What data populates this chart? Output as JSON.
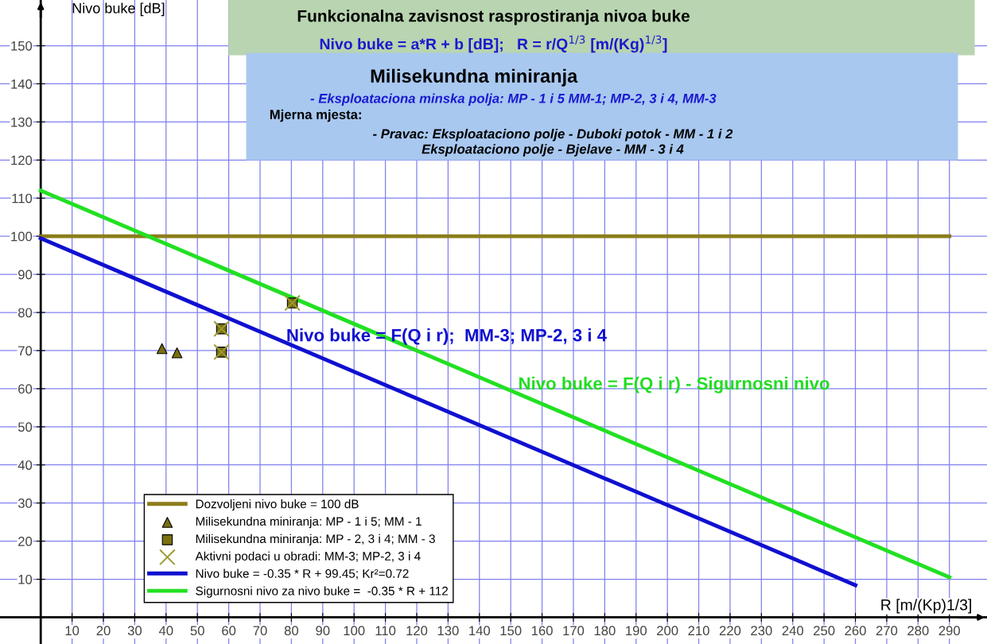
{
  "chart_data": {
    "type": "line",
    "xlabel": "R [m/(Kp)1/3]",
    "ylabel": "Nivo buke [dB]",
    "xlim": [
      -13,
      302
    ],
    "ylim": [
      -7,
      162
    ],
    "xticks": [
      10,
      20,
      30,
      40,
      50,
      60,
      70,
      80,
      90,
      100,
      110,
      120,
      130,
      140,
      150,
      160,
      170,
      180,
      190,
      200,
      210,
      220,
      230,
      240,
      250,
      260,
      270,
      280,
      290
    ],
    "yticks": [
      10,
      20,
      30,
      40,
      50,
      60,
      70,
      80,
      90,
      100,
      110,
      120,
      130,
      140,
      150
    ],
    "grid": true,
    "legend": "bottom left",
    "series": [
      {
        "name": "Dozvoljeni nivo buke = 100 dB",
        "color": "#8b7d1a",
        "x": [
          0,
          290
        ],
        "values": [
          100,
          100
        ]
      },
      {
        "name": "Milisekundna miniranja: MP - 1 i 5; MM - 1",
        "type": "scatter",
        "marker": "triangle",
        "color": "#7a7010",
        "x": [
          38.7,
          43.5
        ],
        "values": [
          70.5,
          69.4
        ]
      },
      {
        "name": "Milisekundna miniranja: MP - 2, 3 i 4; MM - 3",
        "type": "scatter",
        "marker": "square",
        "color": "#7a7010",
        "x": [
          57.7,
          57.7,
          80.3
        ],
        "values": [
          75.7,
          69.6,
          82.5
        ]
      },
      {
        "name": "Aktivni podaci u obradi: MM-3; MP-2, 3 i 4",
        "type": "scatter",
        "marker": "cross",
        "color": "#9c9a30",
        "x": [
          57.7,
          57.7,
          80.3
        ],
        "values": [
          75.7,
          69.6,
          82.5
        ]
      },
      {
        "name": "Nivo buke = -0.35 * R + 99.45; Kr²=0.72",
        "color": "#1010d0",
        "x": [
          0,
          260
        ],
        "values": [
          99.45,
          8.45
        ]
      },
      {
        "name": "Sigurnosni nivo za nivo buke =  -0.35 * R + 112",
        "color": "#22e022",
        "x": [
          0,
          290
        ],
        "values": [
          112,
          10.5
        ]
      }
    ],
    "annotations": [
      "Funkcionalna zavisnost rasprostiranja nivoa buke",
      "Nivo buke = a*R + b [dB];   R = r/Q$^{1/3}$ [m/(Kg)$^{1/3}$]",
      "Milisekundna miniranja",
      "- Eksploataciona minska polja: MP - 1 i 5 MM-1; MP-2, 3 i 4, MM-3",
      "Mjerna mjesta:",
      "- Pravac: Eksploataciono polje - Duboki potok - MM - 1 i 2\nEksploataciono polje - Bjelave - MM - 3 i 4",
      "Nivo buke = F(Q i r);  MM-3; MP-2, 3 i 4",
      "Nivo buke = F(Q i r) - Sigurnosni nivo"
    ]
  }
}
